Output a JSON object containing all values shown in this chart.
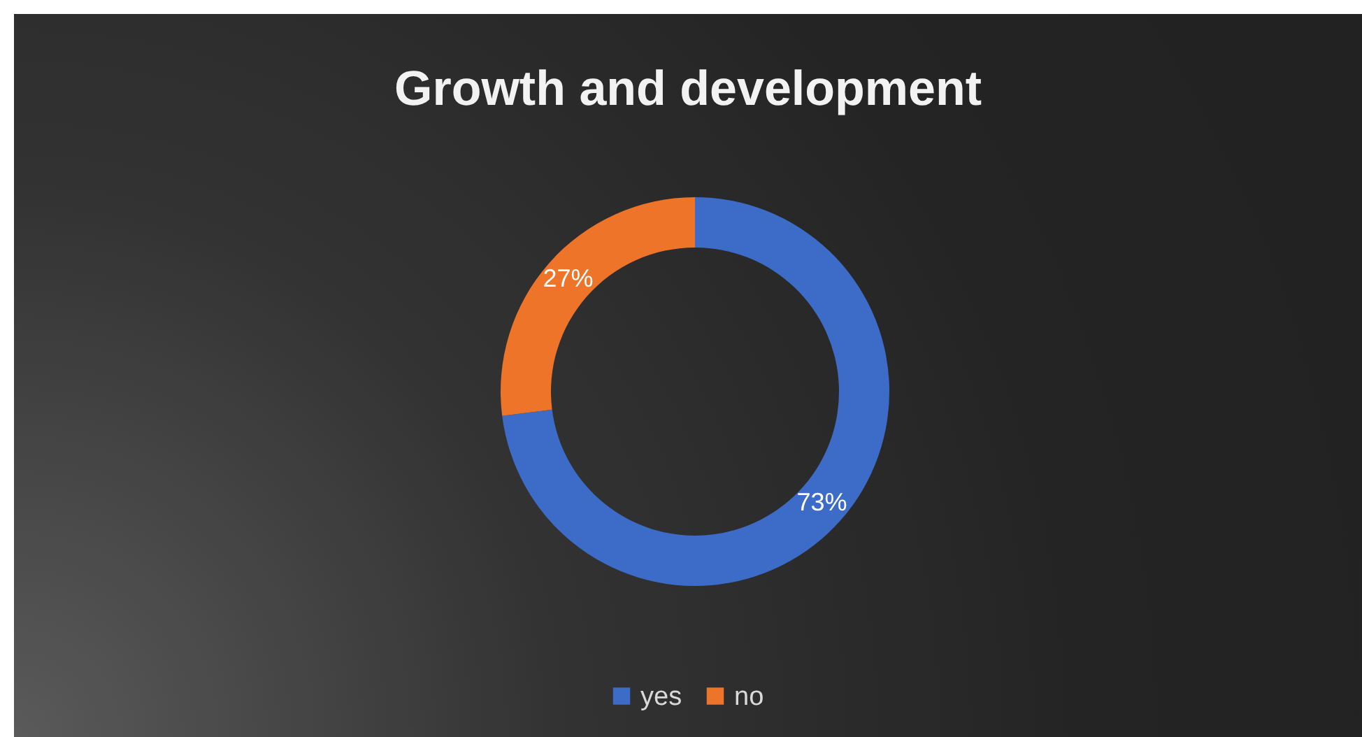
{
  "chart_data": {
    "type": "donut",
    "title": "Growth and development",
    "categories": [
      "yes",
      "no"
    ],
    "values": [
      73,
      27
    ],
    "value_labels": [
      "73%",
      "27%"
    ],
    "colors": [
      "#3d6cc8",
      "#ed7428"
    ],
    "legend": "bottom"
  }
}
